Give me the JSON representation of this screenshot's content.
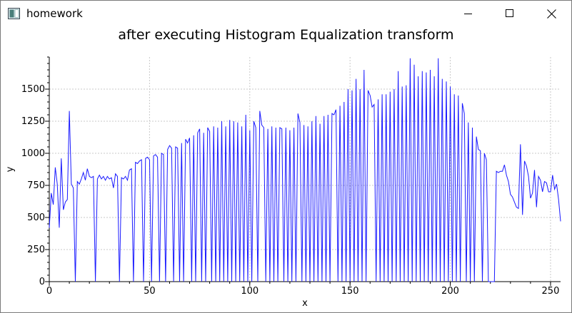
{
  "window": {
    "title": "homework",
    "buttons": {
      "minimize": "minimize",
      "maximize": "maximize",
      "close": "close"
    }
  },
  "chart_data": {
    "type": "line",
    "title": "after executing Histogram Equalization transform",
    "xlabel": "x",
    "ylabel": "y",
    "xlim": [
      0,
      255
    ],
    "ylim": [
      0,
      1750
    ],
    "xticks": [
      0,
      50,
      100,
      150,
      200,
      250
    ],
    "yticks": [
      0,
      250,
      500,
      750,
      1000,
      1250,
      1500
    ],
    "grid": true,
    "line_color": "#1a1aff",
    "series": [
      {
        "points": [
          [
            0,
            420
          ],
          [
            1,
            690
          ],
          [
            2,
            600
          ],
          [
            3,
            890
          ],
          [
            4,
            760
          ],
          [
            5,
            420
          ],
          [
            6,
            960
          ],
          [
            7,
            560
          ],
          [
            8,
            620
          ],
          [
            9,
            640
          ],
          [
            10,
            1330
          ],
          [
            11,
            760
          ],
          [
            12,
            730
          ],
          [
            13,
            0
          ],
          [
            14,
            780
          ],
          [
            15,
            760
          ],
          [
            16,
            800
          ],
          [
            17,
            850
          ],
          [
            18,
            790
          ],
          [
            19,
            880
          ],
          [
            20,
            820
          ],
          [
            21,
            810
          ],
          [
            22,
            820
          ],
          [
            23,
            0
          ],
          [
            24,
            800
          ],
          [
            25,
            830
          ],
          [
            26,
            800
          ],
          [
            27,
            820
          ],
          [
            28,
            790
          ],
          [
            29,
            820
          ],
          [
            30,
            800
          ],
          [
            31,
            810
          ],
          [
            32,
            730
          ],
          [
            33,
            840
          ],
          [
            34,
            820
          ],
          [
            35,
            0
          ],
          [
            36,
            810
          ],
          [
            37,
            800
          ],
          [
            38,
            820
          ],
          [
            39,
            790
          ],
          [
            40,
            870
          ],
          [
            41,
            880
          ],
          [
            42,
            0
          ],
          [
            43,
            930
          ],
          [
            44,
            920
          ],
          [
            45,
            940
          ],
          [
            46,
            950
          ],
          [
            47,
            0
          ],
          [
            48,
            960
          ],
          [
            49,
            970
          ],
          [
            50,
            950
          ],
          [
            51,
            0
          ],
          [
            52,
            980
          ],
          [
            53,
            990
          ],
          [
            54,
            970
          ],
          [
            55,
            0
          ],
          [
            56,
            1000
          ],
          [
            57,
            990
          ],
          [
            58,
            0
          ],
          [
            59,
            1030
          ],
          [
            60,
            1060
          ],
          [
            61,
            1040
          ],
          [
            62,
            0
          ],
          [
            63,
            1050
          ],
          [
            64,
            1040
          ],
          [
            65,
            0
          ],
          [
            66,
            1080
          ],
          [
            67,
            0
          ],
          [
            68,
            1110
          ],
          [
            69,
            1080
          ],
          [
            70,
            1120
          ],
          [
            71,
            0
          ],
          [
            72,
            1140
          ],
          [
            73,
            0
          ],
          [
            74,
            1160
          ],
          [
            75,
            1190
          ],
          [
            76,
            0
          ],
          [
            77,
            1160
          ],
          [
            78,
            0
          ],
          [
            79,
            1200
          ],
          [
            80,
            1170
          ],
          [
            81,
            0
          ],
          [
            82,
            1210
          ],
          [
            83,
            0
          ],
          [
            84,
            1200
          ],
          [
            85,
            0
          ],
          [
            86,
            1250
          ],
          [
            87,
            0
          ],
          [
            88,
            1210
          ],
          [
            89,
            0
          ],
          [
            90,
            1260
          ],
          [
            91,
            0
          ],
          [
            92,
            1250
          ],
          [
            93,
            0
          ],
          [
            94,
            1240
          ],
          [
            95,
            0
          ],
          [
            96,
            1210
          ],
          [
            97,
            0
          ],
          [
            98,
            1300
          ],
          [
            99,
            0
          ],
          [
            100,
            1180
          ],
          [
            101,
            0
          ],
          [
            102,
            1250
          ],
          [
            103,
            1200
          ],
          [
            104,
            0
          ],
          [
            105,
            1330
          ],
          [
            106,
            1220
          ],
          [
            107,
            1200
          ],
          [
            108,
            0
          ],
          [
            109,
            1190
          ],
          [
            110,
            0
          ],
          [
            111,
            1210
          ],
          [
            112,
            0
          ],
          [
            113,
            1200
          ],
          [
            114,
            0
          ],
          [
            115,
            1200
          ],
          [
            116,
            1190
          ],
          [
            117,
            0
          ],
          [
            118,
            1200
          ],
          [
            119,
            0
          ],
          [
            120,
            1180
          ],
          [
            121,
            0
          ],
          [
            122,
            1200
          ],
          [
            123,
            0
          ],
          [
            124,
            1310
          ],
          [
            125,
            1240
          ],
          [
            126,
            0
          ],
          [
            127,
            1220
          ],
          [
            128,
            0
          ],
          [
            129,
            1210
          ],
          [
            130,
            0
          ],
          [
            131,
            1250
          ],
          [
            132,
            0
          ],
          [
            133,
            1290
          ],
          [
            134,
            0
          ],
          [
            135,
            1230
          ],
          [
            136,
            0
          ],
          [
            137,
            1290
          ],
          [
            138,
            0
          ],
          [
            139,
            1300
          ],
          [
            140,
            0
          ],
          [
            141,
            1310
          ],
          [
            142,
            1300
          ],
          [
            143,
            1340
          ],
          [
            144,
            0
          ],
          [
            145,
            1370
          ],
          [
            146,
            0
          ],
          [
            147,
            1400
          ],
          [
            148,
            0
          ],
          [
            149,
            1500
          ],
          [
            150,
            0
          ],
          [
            151,
            1490
          ],
          [
            152,
            0
          ],
          [
            153,
            1580
          ],
          [
            154,
            0
          ],
          [
            155,
            1500
          ],
          [
            156,
            0
          ],
          [
            157,
            1650
          ],
          [
            158,
            0
          ],
          [
            159,
            1490
          ],
          [
            160,
            1450
          ],
          [
            161,
            1360
          ],
          [
            162,
            1380
          ],
          [
            163,
            0
          ],
          [
            164,
            1420
          ],
          [
            165,
            0
          ],
          [
            166,
            1460
          ],
          [
            167,
            0
          ],
          [
            168,
            1460
          ],
          [
            169,
            0
          ],
          [
            170,
            1480
          ],
          [
            171,
            0
          ],
          [
            172,
            1500
          ],
          [
            173,
            0
          ],
          [
            174,
            1640
          ],
          [
            175,
            0
          ],
          [
            176,
            1520
          ],
          [
            177,
            0
          ],
          [
            178,
            1530
          ],
          [
            179,
            0
          ],
          [
            180,
            1740
          ],
          [
            181,
            0
          ],
          [
            182,
            1690
          ],
          [
            183,
            0
          ],
          [
            184,
            1600
          ],
          [
            185,
            0
          ],
          [
            186,
            1640
          ],
          [
            187,
            0
          ],
          [
            188,
            1630
          ],
          [
            189,
            0
          ],
          [
            190,
            1650
          ],
          [
            191,
            0
          ],
          [
            192,
            1600
          ],
          [
            193,
            0
          ],
          [
            194,
            1740
          ],
          [
            195,
            0
          ],
          [
            196,
            1580
          ],
          [
            197,
            0
          ],
          [
            198,
            1560
          ],
          [
            199,
            0
          ],
          [
            200,
            1520
          ],
          [
            201,
            0
          ],
          [
            202,
            1460
          ],
          [
            203,
            0
          ],
          [
            204,
            1450
          ],
          [
            205,
            0
          ],
          [
            206,
            1390
          ],
          [
            207,
            1310
          ],
          [
            208,
            0
          ],
          [
            209,
            1240
          ],
          [
            210,
            0
          ],
          [
            211,
            1200
          ],
          [
            212,
            0
          ],
          [
            213,
            1130
          ],
          [
            214,
            1030
          ],
          [
            215,
            1020
          ],
          [
            216,
            0
          ],
          [
            217,
            1000
          ],
          [
            218,
            950
          ],
          [
            219,
            0
          ],
          [
            220,
            0
          ],
          [
            221,
            0
          ],
          [
            222,
            0
          ],
          [
            223,
            860
          ],
          [
            224,
            850
          ],
          [
            225,
            860
          ],
          [
            226,
            860
          ],
          [
            227,
            910
          ],
          [
            228,
            830
          ],
          [
            229,
            780
          ],
          [
            230,
            680
          ],
          [
            231,
            660
          ],
          [
            232,
            620
          ],
          [
            233,
            580
          ],
          [
            234,
            570
          ],
          [
            235,
            1070
          ],
          [
            236,
            520
          ],
          [
            237,
            940
          ],
          [
            238,
            900
          ],
          [
            239,
            820
          ],
          [
            240,
            650
          ],
          [
            241,
            690
          ],
          [
            242,
            870
          ],
          [
            243,
            580
          ],
          [
            244,
            820
          ],
          [
            245,
            790
          ],
          [
            246,
            700
          ],
          [
            247,
            780
          ],
          [
            248,
            770
          ],
          [
            249,
            700
          ],
          [
            250,
            700
          ],
          [
            251,
            830
          ],
          [
            252,
            720
          ],
          [
            253,
            760
          ],
          [
            254,
            640
          ],
          [
            255,
            470
          ]
        ]
      }
    ]
  }
}
